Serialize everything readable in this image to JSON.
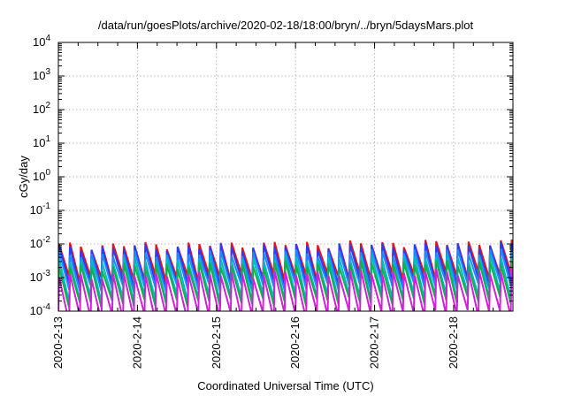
{
  "chart_data": {
    "type": "line",
    "title": "/data/run/goesPlots/archive/2020-02-18/18:00/bryn/../bryn/5daysMars.plot",
    "xlabel": "Coordinated Universal Time (UTC)",
    "ylabel": "cGy/day",
    "yscale": "log",
    "ylim": [
      0.0001,
      10000
    ],
    "xlim": [
      "2020-02-13 00:00",
      "2020-02-18 18:00"
    ],
    "x_ticks": [
      "2020-2-13",
      "2020-2-14",
      "2020-2-15",
      "2020-2-16",
      "2020-2-17",
      "2020-2-18"
    ],
    "y_ticks": [
      {
        "base": "10",
        "exp": "-4",
        "value": 0.0001
      },
      {
        "base": "10",
        "exp": "-3",
        "value": 0.001
      },
      {
        "base": "10",
        "exp": "-2",
        "value": 0.01
      },
      {
        "base": "10",
        "exp": "-1",
        "value": 0.1
      },
      {
        "base": "10",
        "exp": "0",
        "value": 1
      },
      {
        "base": "10",
        "exp": "1",
        "value": 10
      },
      {
        "base": "10",
        "exp": "2",
        "value": 100
      },
      {
        "base": "10",
        "exp": "3",
        "value": 1000
      },
      {
        "base": "10",
        "exp": "4",
        "value": 10000
      }
    ],
    "grid": true,
    "legend": "none",
    "cycle_hours": 3.27,
    "series": [
      {
        "color": "#e8101a",
        "peak": 0.0088,
        "trough": 0.0009,
        "peak_day6": 0.011,
        "trough_day6": 0.0012
      },
      {
        "color": "#2a3cf5",
        "peak": 0.0074,
        "trough": 0.0006,
        "peak_day6": 0.0094,
        "trough_day6": 0.0008
      },
      {
        "color": "#1e88ff",
        "peak": 0.0048,
        "trough": 0.00045,
        "peak_day6": 0.0062,
        "trough_day6": 0.0006
      },
      {
        "color": "#00b8c0",
        "peak": 0.0032,
        "trough": 0.00022,
        "peak_day6": 0.0042,
        "trough_day6": 0.0003
      },
      {
        "color": "#12b04a",
        "peak": 0.0021,
        "trough": 0.00016,
        "peak_day6": 0.0028,
        "trough_day6": 0.00022
      },
      {
        "color": "#d020d8",
        "peak": 0.0011,
        "trough": 6e-05,
        "peak_day6": 0.0015,
        "trough_day6": 9e-05
      }
    ]
  }
}
